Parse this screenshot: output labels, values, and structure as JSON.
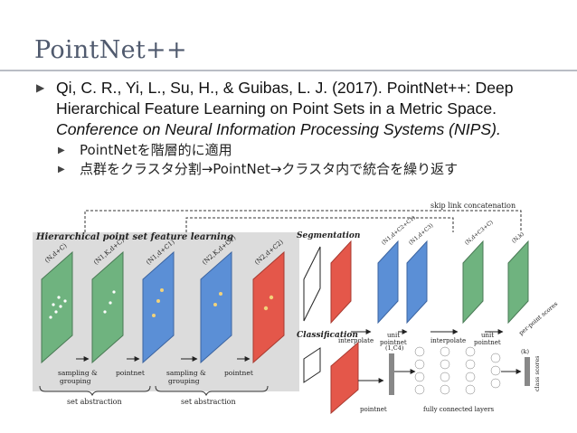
{
  "slide": {
    "title": "PointNet++"
  },
  "reference": {
    "line1": "Qi, C. R., Yi, L., Su, H., & Guibas, L. J. (2017). PointNet++: Deep",
    "line2": "Hierarchical Feature Learning on Point Sets in a Metric Space.",
    "line3": "Conference on Neural Information Processing Systems (NIPS)."
  },
  "sub_bullets": [
    "PointNetを階層的に適用",
    "点群をクラスタ分割→PointNet→クラスタ内で統合を繰り返す"
  ],
  "figure": {
    "title": "Hierarchical point set feature learning",
    "skip_link": "skip link concatenation",
    "segmentation": "Segmentation",
    "classification": "Classification",
    "panel_labels": [
      "(N,d+C)",
      "(N1,K,d+C)",
      "(N1,d+C1)",
      "(N2,K,d+C1)",
      "(N2,d+C2)"
    ],
    "seg_labels": [
      "(N1,d+C2+C1)",
      "(N1,d+C3)",
      "(N,d+C3+C)",
      "(N,k)"
    ],
    "ops": {
      "sampling_grouping_1": "sampling &",
      "sampling_grouping_2": "grouping",
      "pointnet": "pointnet",
      "set_abstraction": "set abstraction",
      "interpolate": "interpolate",
      "unit_pointnet_1": "unit",
      "unit_pointnet_2": "pointnet",
      "per_point_scores": "per-point scores",
      "cls_label": "(1,C4)",
      "fully_connected": "fully connected layers",
      "class_out": "(k)",
      "class_scores": "class scores"
    }
  },
  "colors": {
    "title": "#505a6e",
    "green": "#6fb37f",
    "blue": "#5b8fd6",
    "red": "#e4574a",
    "gray_panel": "#c8c8c8"
  }
}
